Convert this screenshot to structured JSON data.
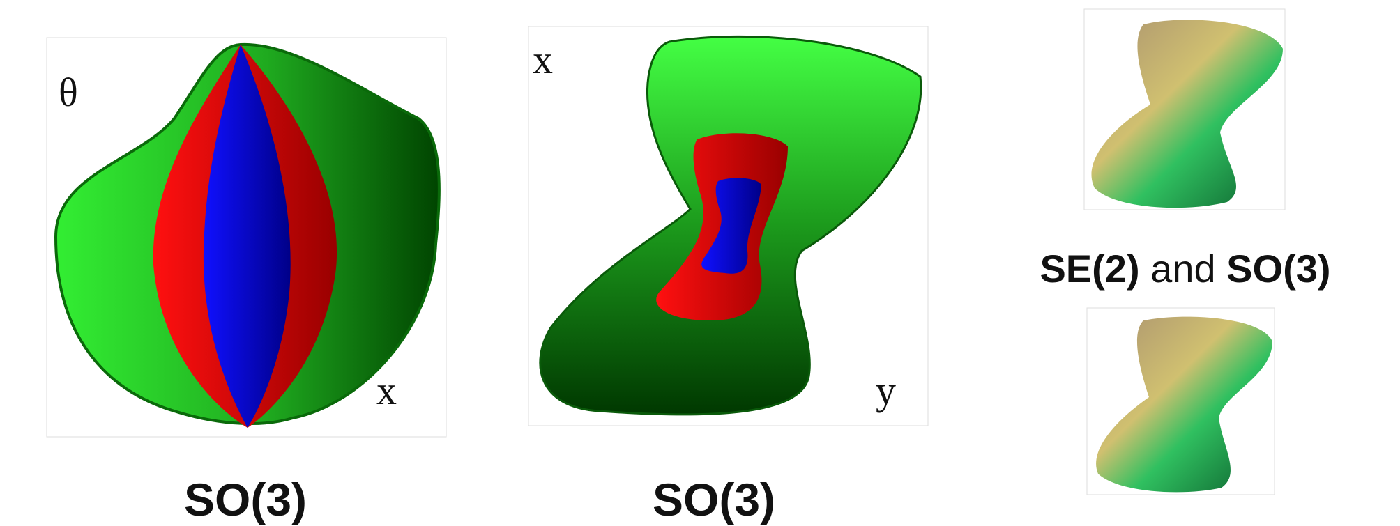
{
  "panels": [
    {
      "axis_labels": [
        "θ",
        "x"
      ],
      "caption": "SO(3)"
    },
    {
      "axis_labels": [
        "x",
        "y"
      ],
      "caption": "SO(3)"
    },
    {
      "caption_parts": [
        "SE(2)",
        " and ",
        "SO(3)"
      ]
    }
  ]
}
